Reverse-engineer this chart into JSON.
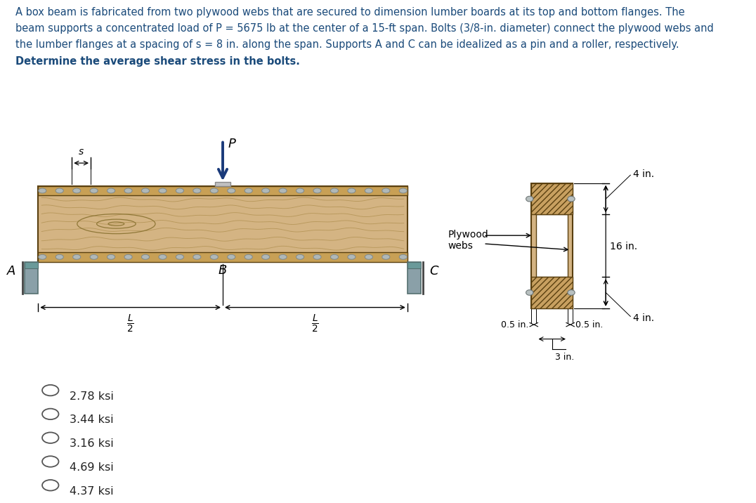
{
  "title_line1": "A box beam is fabricated from two plywood webs that are secured to dimension lumber boards at its top and bottom flanges. The",
  "title_line2": "beam supports a concentrated load of P = 5675 lb at the center of a 15-ft span. Bolts (3/8-in. diameter) connect the plywood webs and",
  "title_line3": "the lumber flanges at a spacing of s = 8 in. along the span. Supports A and C can be idealized as a pin and a roller, respectively.",
  "title_line4": "Determine the average shear stress in the bolts.",
  "title_color": "#1a4a7a",
  "title_fontsize": 10.5,
  "beam_color": "#d4b483",
  "beam_edge_color": "#5a4010",
  "bolt_color": "#b0b8b8",
  "bolt_edge_color": "#808888",
  "support_color": "#8aa0a8",
  "arrow_color": "#1a3a7a",
  "flange_hatch_color": "#6b4c0a",
  "flange_color": "#c8a060",
  "web_color": "#d4b483",
  "options": [
    "2.78 ksi",
    "3.44 ksi",
    "3.16 ksi",
    "4.69 ksi",
    "4.37 ksi"
  ]
}
